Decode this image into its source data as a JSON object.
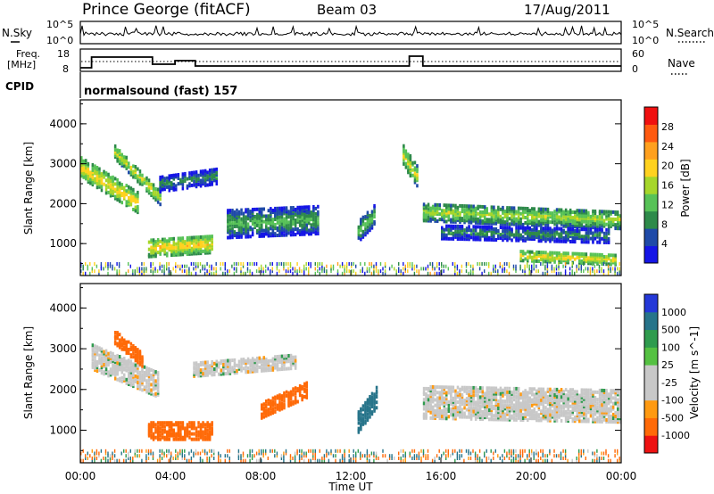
{
  "header": {
    "station": "Prince George (fitACF)",
    "beam": "Beam 03",
    "date": "17/Aug/2011"
  },
  "top_panels": {
    "noise": {
      "left_label": "N.Sky",
      "left_ticks": [
        "10^5",
        "10^0"
      ],
      "right_label": "N.Search",
      "right_ticks": [
        "10^5",
        "10^0"
      ]
    },
    "frequency": {
      "left_label_line1": "Freq.",
      "left_label_line2": "[MHz]",
      "left_ticks": [
        "18",
        "8"
      ],
      "right_label": "Nave",
      "right_ticks": [
        "60",
        "0"
      ]
    },
    "cpid": {
      "label": "CPID",
      "mode_text": "normalsound (fast) 157"
    }
  },
  "colors": {
    "power_scale": [
      "#1515e6",
      "#1f4aa8",
      "#2e8a4a",
      "#57c257",
      "#a6d62a",
      "#ffd21f",
      "#ffa01e",
      "#ff5a10",
      "#f01010"
    ],
    "velocity_scale": [
      "#2438d8",
      "#27748a",
      "#2f9b4e",
      "#55c142",
      "#c8c8c8",
      "#c8c8c8",
      "#ff9a12",
      "#ff6a08",
      "#ee1212"
    ]
  },
  "chart_data": [
    {
      "type": "heatmap",
      "ylabel": "Slant Range [km]",
      "yticks": [
        "1000",
        "2000",
        "3000",
        "4000"
      ],
      "ylim": [
        200,
        4600
      ],
      "colorbar": {
        "label": "Power [dB]",
        "ticks": [
          "4",
          "8",
          "12",
          "16",
          "20",
          "24",
          "28"
        ],
        "range": [
          0,
          32
        ]
      },
      "series": [
        {
          "name": "",
          "t_start": 0.0,
          "t_end": 2.6,
          "r_start": 2900,
          "r_end": 2000,
          "width": 500,
          "level": 20
        },
        {
          "name": "",
          "t_start": 1.5,
          "t_end": 3.6,
          "r_start": 3300,
          "r_end": 2100,
          "width": 350,
          "level": 18
        },
        {
          "name": "",
          "t_start": 3.0,
          "t_end": 5.8,
          "r_start": 900,
          "r_end": 1000,
          "width": 450,
          "level": 20
        },
        {
          "name": "",
          "t_start": 3.5,
          "t_end": 6.0,
          "r_start": 2500,
          "r_end": 2700,
          "width": 400,
          "level": 10
        },
        {
          "name": "",
          "t_start": 6.5,
          "t_end": 10.5,
          "r_start": 1500,
          "r_end": 1600,
          "width": 700,
          "level": 12
        },
        {
          "name": "",
          "t_start": 12.3,
          "t_end": 13.0,
          "r_start": 1300,
          "r_end": 1700,
          "width": 500,
          "level": 14
        },
        {
          "name": "",
          "t_start": 14.3,
          "t_end": 14.9,
          "r_start": 3200,
          "r_end": 2700,
          "width": 500,
          "level": 18
        },
        {
          "name": "",
          "t_start": 15.2,
          "t_end": 24.0,
          "r_start": 1800,
          "r_end": 1600,
          "width": 450,
          "level": 16
        },
        {
          "name": "",
          "t_start": 16.0,
          "t_end": 23.5,
          "r_start": 1300,
          "r_end": 1200,
          "width": 350,
          "level": 10
        },
        {
          "name": "",
          "t_start": 19.5,
          "t_end": 23.8,
          "r_start": 700,
          "r_end": 600,
          "width": 250,
          "level": 20
        }
      ]
    },
    {
      "type": "heatmap",
      "ylabel": "Slant Range [km]",
      "yticks": [
        "1000",
        "2000",
        "3000",
        "4000"
      ],
      "ylim": [
        200,
        4600
      ],
      "xticks": [
        "00:00",
        "04:00",
        "08:00",
        "12:00",
        "16:00",
        "20:00",
        "00:00"
      ],
      "xlim": [
        0,
        24
      ],
      "xlabel": "Time UT",
      "colorbar": {
        "label": "Velocity [m s^-1]",
        "ticks": [
          "1000",
          "500",
          "100",
          "25",
          "-25",
          "-100",
          "-500",
          "-1000"
        ]
      },
      "series": [
        {
          "name": "",
          "t_start": 0.5,
          "t_end": 3.5,
          "r_start": 2800,
          "r_end": 2100,
          "width": 600,
          "velocity": 0
        },
        {
          "name": "",
          "t_start": 1.5,
          "t_end": 2.8,
          "r_start": 3300,
          "r_end": 2700,
          "width": 350,
          "velocity": -150
        },
        {
          "name": "",
          "t_start": 3.0,
          "t_end": 5.8,
          "r_start": 1000,
          "r_end": 1000,
          "width": 450,
          "velocity": -200
        },
        {
          "name": "",
          "t_start": 8.0,
          "t_end": 10.0,
          "r_start": 1500,
          "r_end": 2000,
          "width": 400,
          "velocity": -150
        },
        {
          "name": "",
          "t_start": 12.3,
          "t_end": 13.1,
          "r_start": 1200,
          "r_end": 1800,
          "width": 500,
          "velocity": 400
        },
        {
          "name": "",
          "t_start": 15.2,
          "t_end": 24.0,
          "r_start": 1700,
          "r_end": 1600,
          "width": 800,
          "velocity": 0
        },
        {
          "name": "",
          "t_start": 5.0,
          "t_end": 9.5,
          "r_start": 2500,
          "r_end": 2700,
          "width": 350,
          "velocity": 0
        }
      ]
    }
  ]
}
